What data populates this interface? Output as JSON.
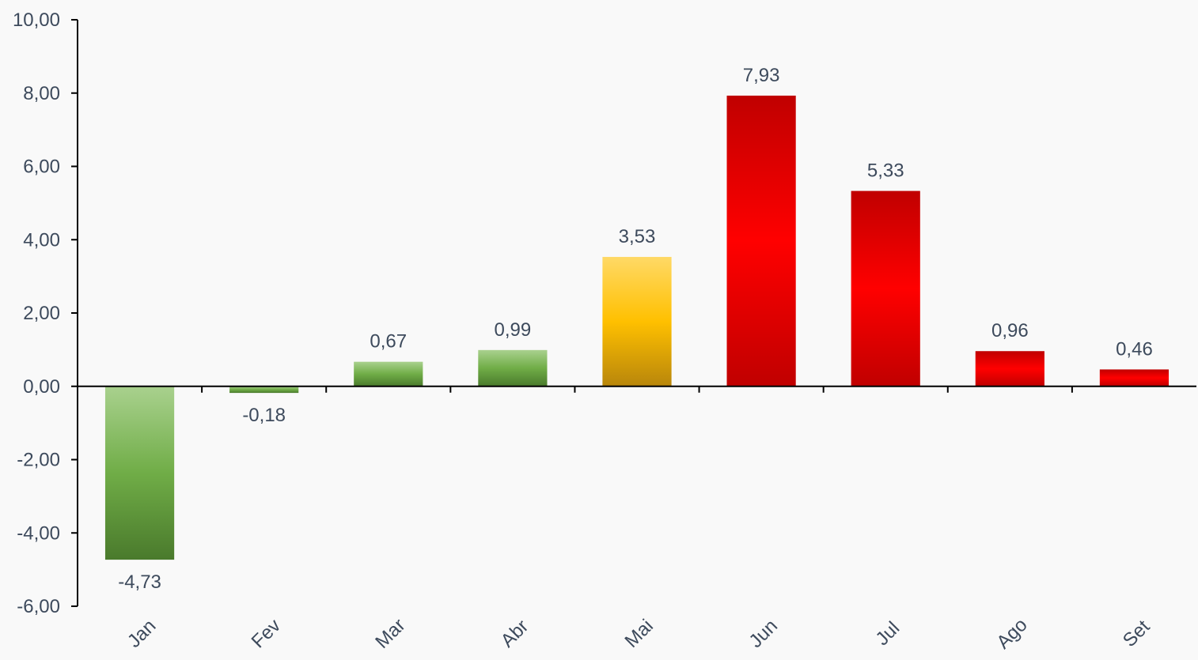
{
  "chart_data": {
    "type": "bar",
    "title": "",
    "xlabel": "",
    "ylabel": "",
    "categories": [
      "Jan",
      "Fev",
      "Mar",
      "Abr",
      "Mai",
      "Jun",
      "Jul",
      "Ago",
      "Set"
    ],
    "values": [
      -4.73,
      -0.18,
      0.67,
      0.99,
      3.53,
      7.93,
      5.33,
      0.96,
      0.46
    ],
    "value_labels": [
      "-4,73",
      "-0,18",
      "0,67",
      "0,99",
      "3,53",
      "7,93",
      "5,33",
      "0,96",
      "0,46"
    ],
    "ylim": [
      -6,
      10
    ],
    "yticks": [
      10,
      8,
      6,
      4,
      2,
      0,
      -2,
      -4,
      -6
    ],
    "ytick_labels": [
      "10,00",
      "8,00",
      "6,00",
      "4,00",
      "2,00",
      "0,00",
      "-2,00",
      "-4,00",
      "-6,00"
    ],
    "bar_colors": [
      "green",
      "green",
      "green",
      "green",
      "yellow",
      "red",
      "red",
      "red",
      "red"
    ],
    "colors": {
      "green": [
        "#a9d18e",
        "#70ad47",
        "#4a7a2c"
      ],
      "yellow": [
        "#ffd966",
        "#ffc000",
        "#b8860b"
      ],
      "red": [
        "#c00000",
        "#ff0000",
        "#c00000"
      ]
    },
    "grid": false,
    "legend": "none"
  }
}
